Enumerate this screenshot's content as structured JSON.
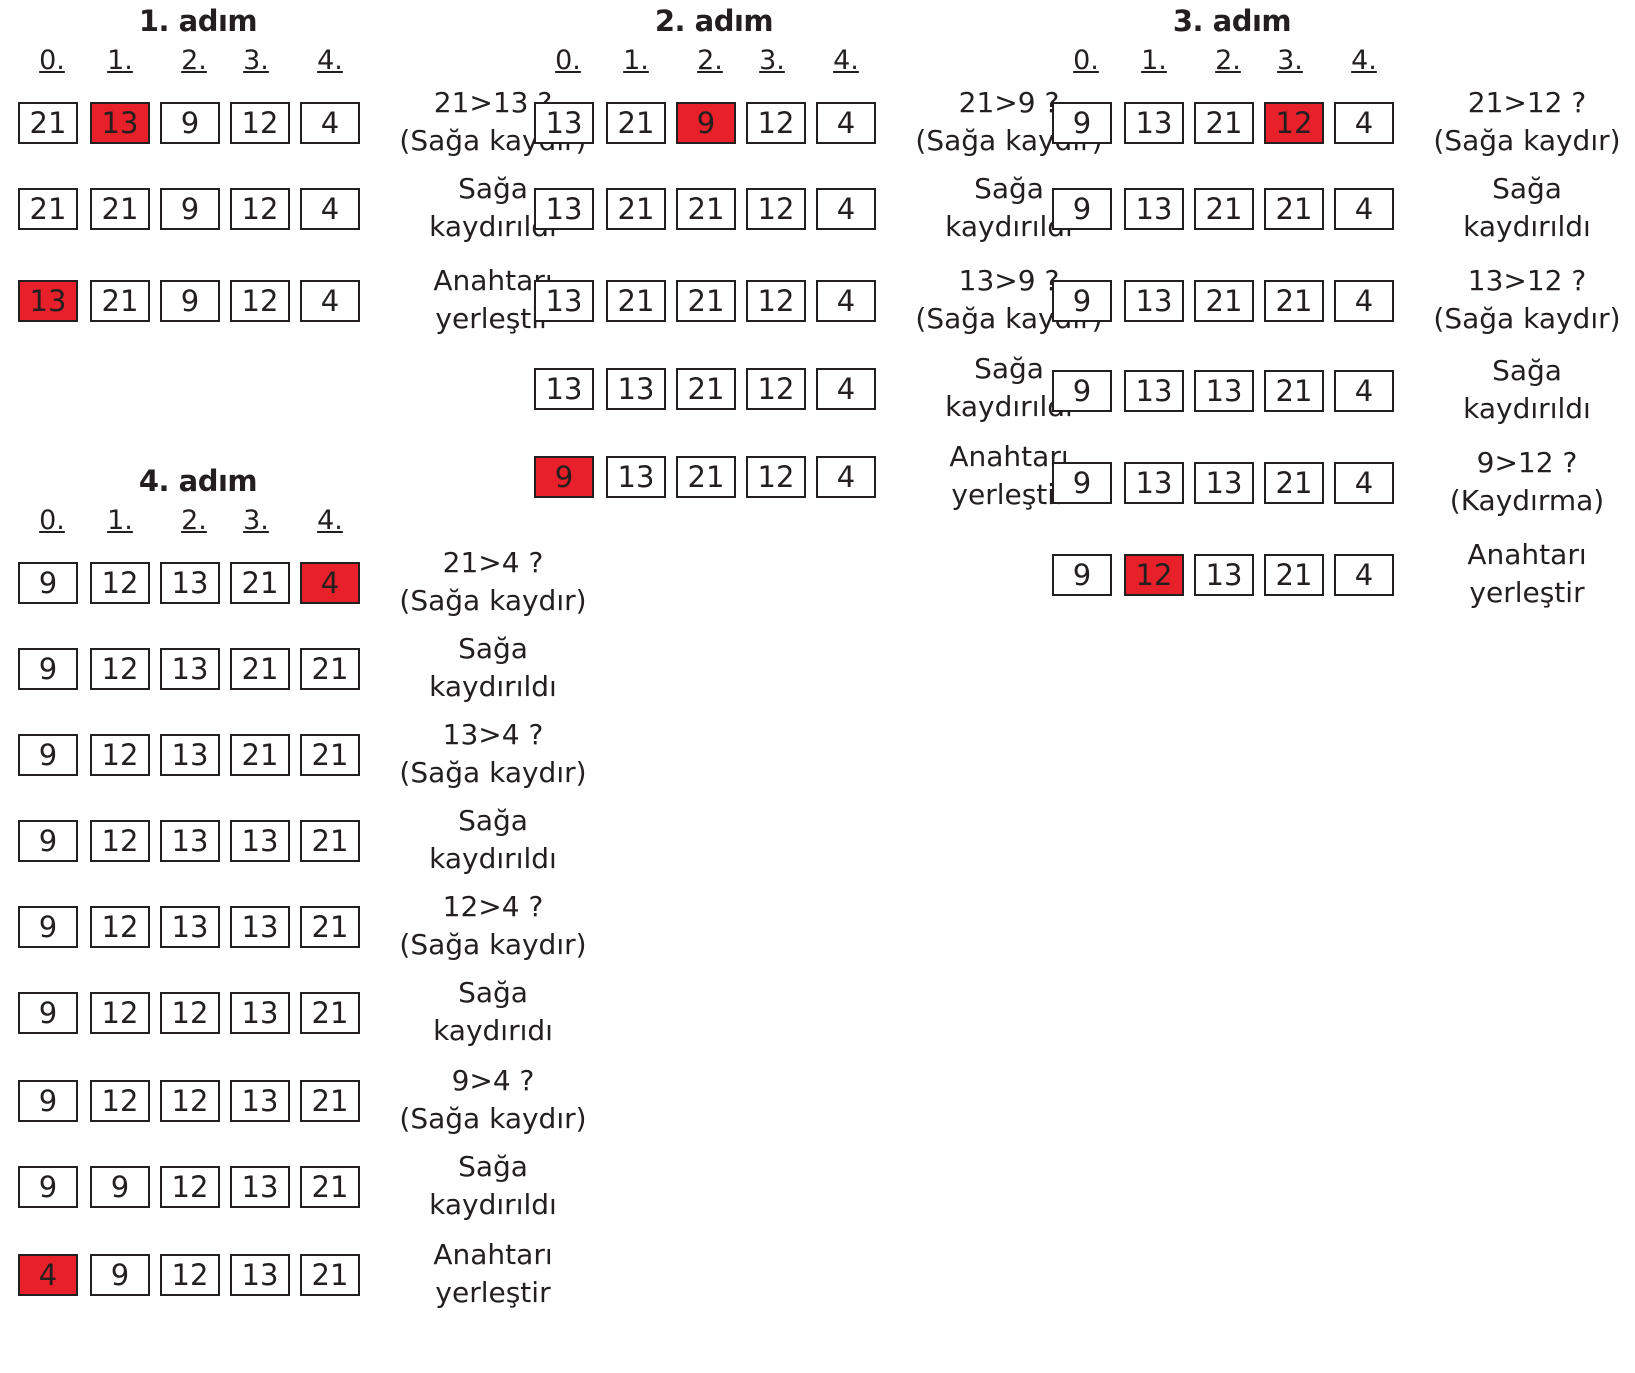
{
  "colors": {
    "highlight": "#e8202a",
    "border": "#231f20",
    "background": "#ffffff"
  },
  "steps": [
    {
      "title": "1. adım",
      "indices": [
        "0.",
        "1.",
        "2.",
        "3.",
        "4."
      ],
      "rows": [
        {
          "cells": [
            "21",
            "13",
            "9",
            "12",
            "4"
          ],
          "highlight": 1,
          "note": [
            "21>13 ?",
            "(Sağa kaydır)"
          ]
        },
        {
          "cells": [
            "21",
            "21",
            "9",
            "12",
            "4"
          ],
          "highlight": null,
          "note": [
            "Sağa",
            "kaydırıldı"
          ]
        },
        {
          "cells": [
            "13",
            "21",
            "9",
            "12",
            "4"
          ],
          "highlight": 0,
          "note": [
            "Anahtarı",
            "yerleştir"
          ]
        }
      ]
    },
    {
      "title": "2. adım",
      "indices": [
        "0.",
        "1.",
        "2.",
        "3.",
        "4."
      ],
      "rows": [
        {
          "cells": [
            "13",
            "21",
            "9",
            "12",
            "4"
          ],
          "highlight": 2,
          "note": [
            "21>9 ?",
            "(Sağa kaydır)"
          ]
        },
        {
          "cells": [
            "13",
            "21",
            "21",
            "12",
            "4"
          ],
          "highlight": null,
          "note": [
            "Sağa",
            "kaydırıldı"
          ]
        },
        {
          "cells": [
            "13",
            "21",
            "21",
            "12",
            "4"
          ],
          "highlight": null,
          "note": [
            "13>9 ?",
            "(Sağa kaydır)"
          ]
        },
        {
          "cells": [
            "13",
            "13",
            "21",
            "12",
            "4"
          ],
          "highlight": null,
          "note": [
            "Sağa",
            "kaydırıldı"
          ]
        },
        {
          "cells": [
            "9",
            "13",
            "21",
            "12",
            "4"
          ],
          "highlight": 0,
          "note": [
            "Anahtarı",
            "yerleştir"
          ]
        }
      ]
    },
    {
      "title": "3. adım",
      "indices": [
        "0.",
        "1.",
        "2.",
        "3.",
        "4."
      ],
      "rows": [
        {
          "cells": [
            "9",
            "13",
            "21",
            "12",
            "4"
          ],
          "highlight": 3,
          "note": [
            "21>12 ?",
            "(Sağa kaydır)"
          ]
        },
        {
          "cells": [
            "9",
            "13",
            "21",
            "21",
            "4"
          ],
          "highlight": null,
          "note": [
            "Sağa",
            "kaydırıldı"
          ]
        },
        {
          "cells": [
            "9",
            "13",
            "21",
            "21",
            "4"
          ],
          "highlight": null,
          "note": [
            "13>12 ?",
            "(Sağa kaydır)"
          ]
        },
        {
          "cells": [
            "9",
            "13",
            "13",
            "21",
            "4"
          ],
          "highlight": null,
          "note": [
            "Sağa",
            "kaydırıldı"
          ]
        },
        {
          "cells": [
            "9",
            "13",
            "13",
            "21",
            "4"
          ],
          "highlight": null,
          "note": [
            "9>12 ?",
            "(Kaydırma)"
          ]
        },
        {
          "cells": [
            "9",
            "12",
            "13",
            "21",
            "4"
          ],
          "highlight": 1,
          "note": [
            "Anahtarı",
            "yerleştir"
          ]
        }
      ]
    },
    {
      "title": "4. adım",
      "indices": [
        "0.",
        "1.",
        "2.",
        "3.",
        "4."
      ],
      "rows": [
        {
          "cells": [
            "9",
            "12",
            "13",
            "21",
            "4"
          ],
          "highlight": 4,
          "note": [
            "21>4 ?",
            "(Sağa kaydır)"
          ]
        },
        {
          "cells": [
            "9",
            "12",
            "13",
            "21",
            "21"
          ],
          "highlight": null,
          "note": [
            "Sağa",
            "kaydırıldı"
          ]
        },
        {
          "cells": [
            "9",
            "12",
            "13",
            "21",
            "21"
          ],
          "highlight": null,
          "note": [
            "13>4 ?",
            "(Sağa kaydır)"
          ]
        },
        {
          "cells": [
            "9",
            "12",
            "13",
            "13",
            "21"
          ],
          "highlight": null,
          "note": [
            "Sağa",
            "kaydırıldı"
          ]
        },
        {
          "cells": [
            "9",
            "12",
            "13",
            "13",
            "21"
          ],
          "highlight": null,
          "note": [
            "12>4 ?",
            "(Sağa kaydır)"
          ]
        },
        {
          "cells": [
            "9",
            "12",
            "12",
            "13",
            "21"
          ],
          "highlight": null,
          "note": [
            "Sağa",
            "kaydırıdı"
          ]
        },
        {
          "cells": [
            "9",
            "12",
            "12",
            "13",
            "21"
          ],
          "highlight": null,
          "note": [
            "9>4 ?",
            "(Sağa kaydır)"
          ]
        },
        {
          "cells": [
            "9",
            "9",
            "12",
            "13",
            "21"
          ],
          "highlight": null,
          "note": [
            "Sağa",
            "kaydırıldı"
          ]
        },
        {
          "cells": [
            "4",
            "9",
            "12",
            "13",
            "21"
          ],
          "highlight": 0,
          "note": [
            "Anahtarı",
            "yerleştir"
          ]
        }
      ]
    }
  ]
}
